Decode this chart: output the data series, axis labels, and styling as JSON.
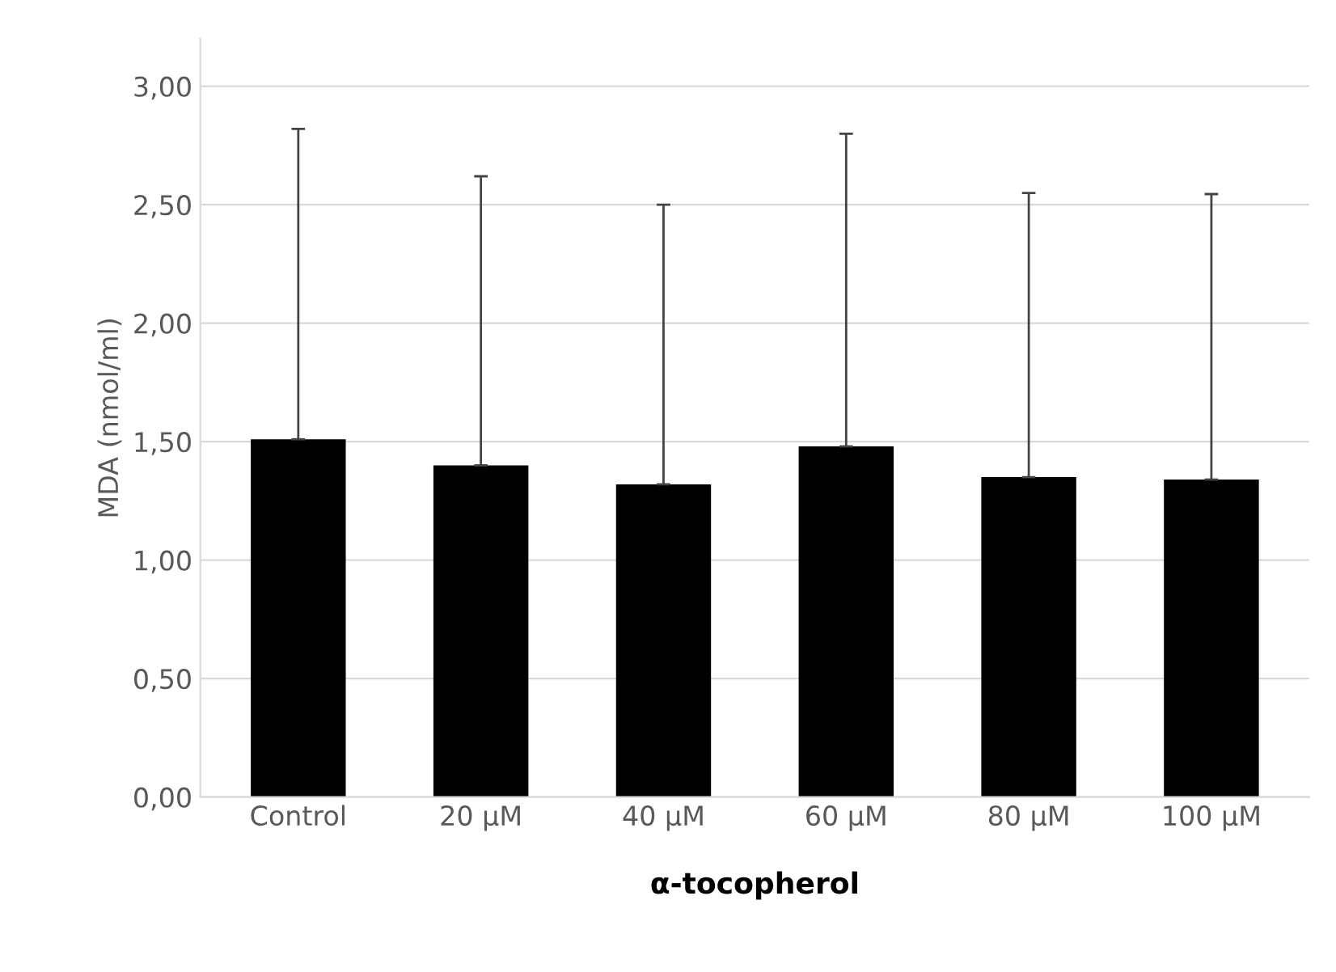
{
  "chart_data": {
    "type": "bar",
    "xlabel": "α-tocopherol",
    "ylabel": "MDA (nmol/ml)",
    "categories": [
      "Control",
      "20 µM",
      "40 µM",
      "60 µM",
      "80 µM",
      "100 µM"
    ],
    "values": [
      1.51,
      1.4,
      1.32,
      1.48,
      1.35,
      1.34
    ],
    "errors": [
      [
        1.51,
        2.82
      ],
      [
        1.4,
        2.62
      ],
      [
        1.32,
        2.5
      ],
      [
        1.48,
        2.8
      ],
      [
        1.35,
        2.55
      ],
      [
        1.34,
        2.545
      ]
    ],
    "color": "#000000",
    "ylim": [
      0,
      3.2
    ],
    "yticks": [
      {
        "value": 0,
        "label": "0,00"
      },
      {
        "value": 0.5,
        "label": "0,50"
      },
      {
        "value": 1,
        "label": "1,00"
      },
      {
        "value": 1.5,
        "label": "1,50"
      },
      {
        "value": 2,
        "label": "2,00"
      },
      {
        "value": 2.5,
        "label": "2,50"
      },
      {
        "value": 3,
        "label": "3,00"
      }
    ],
    "grid": "y",
    "legend": false
  }
}
